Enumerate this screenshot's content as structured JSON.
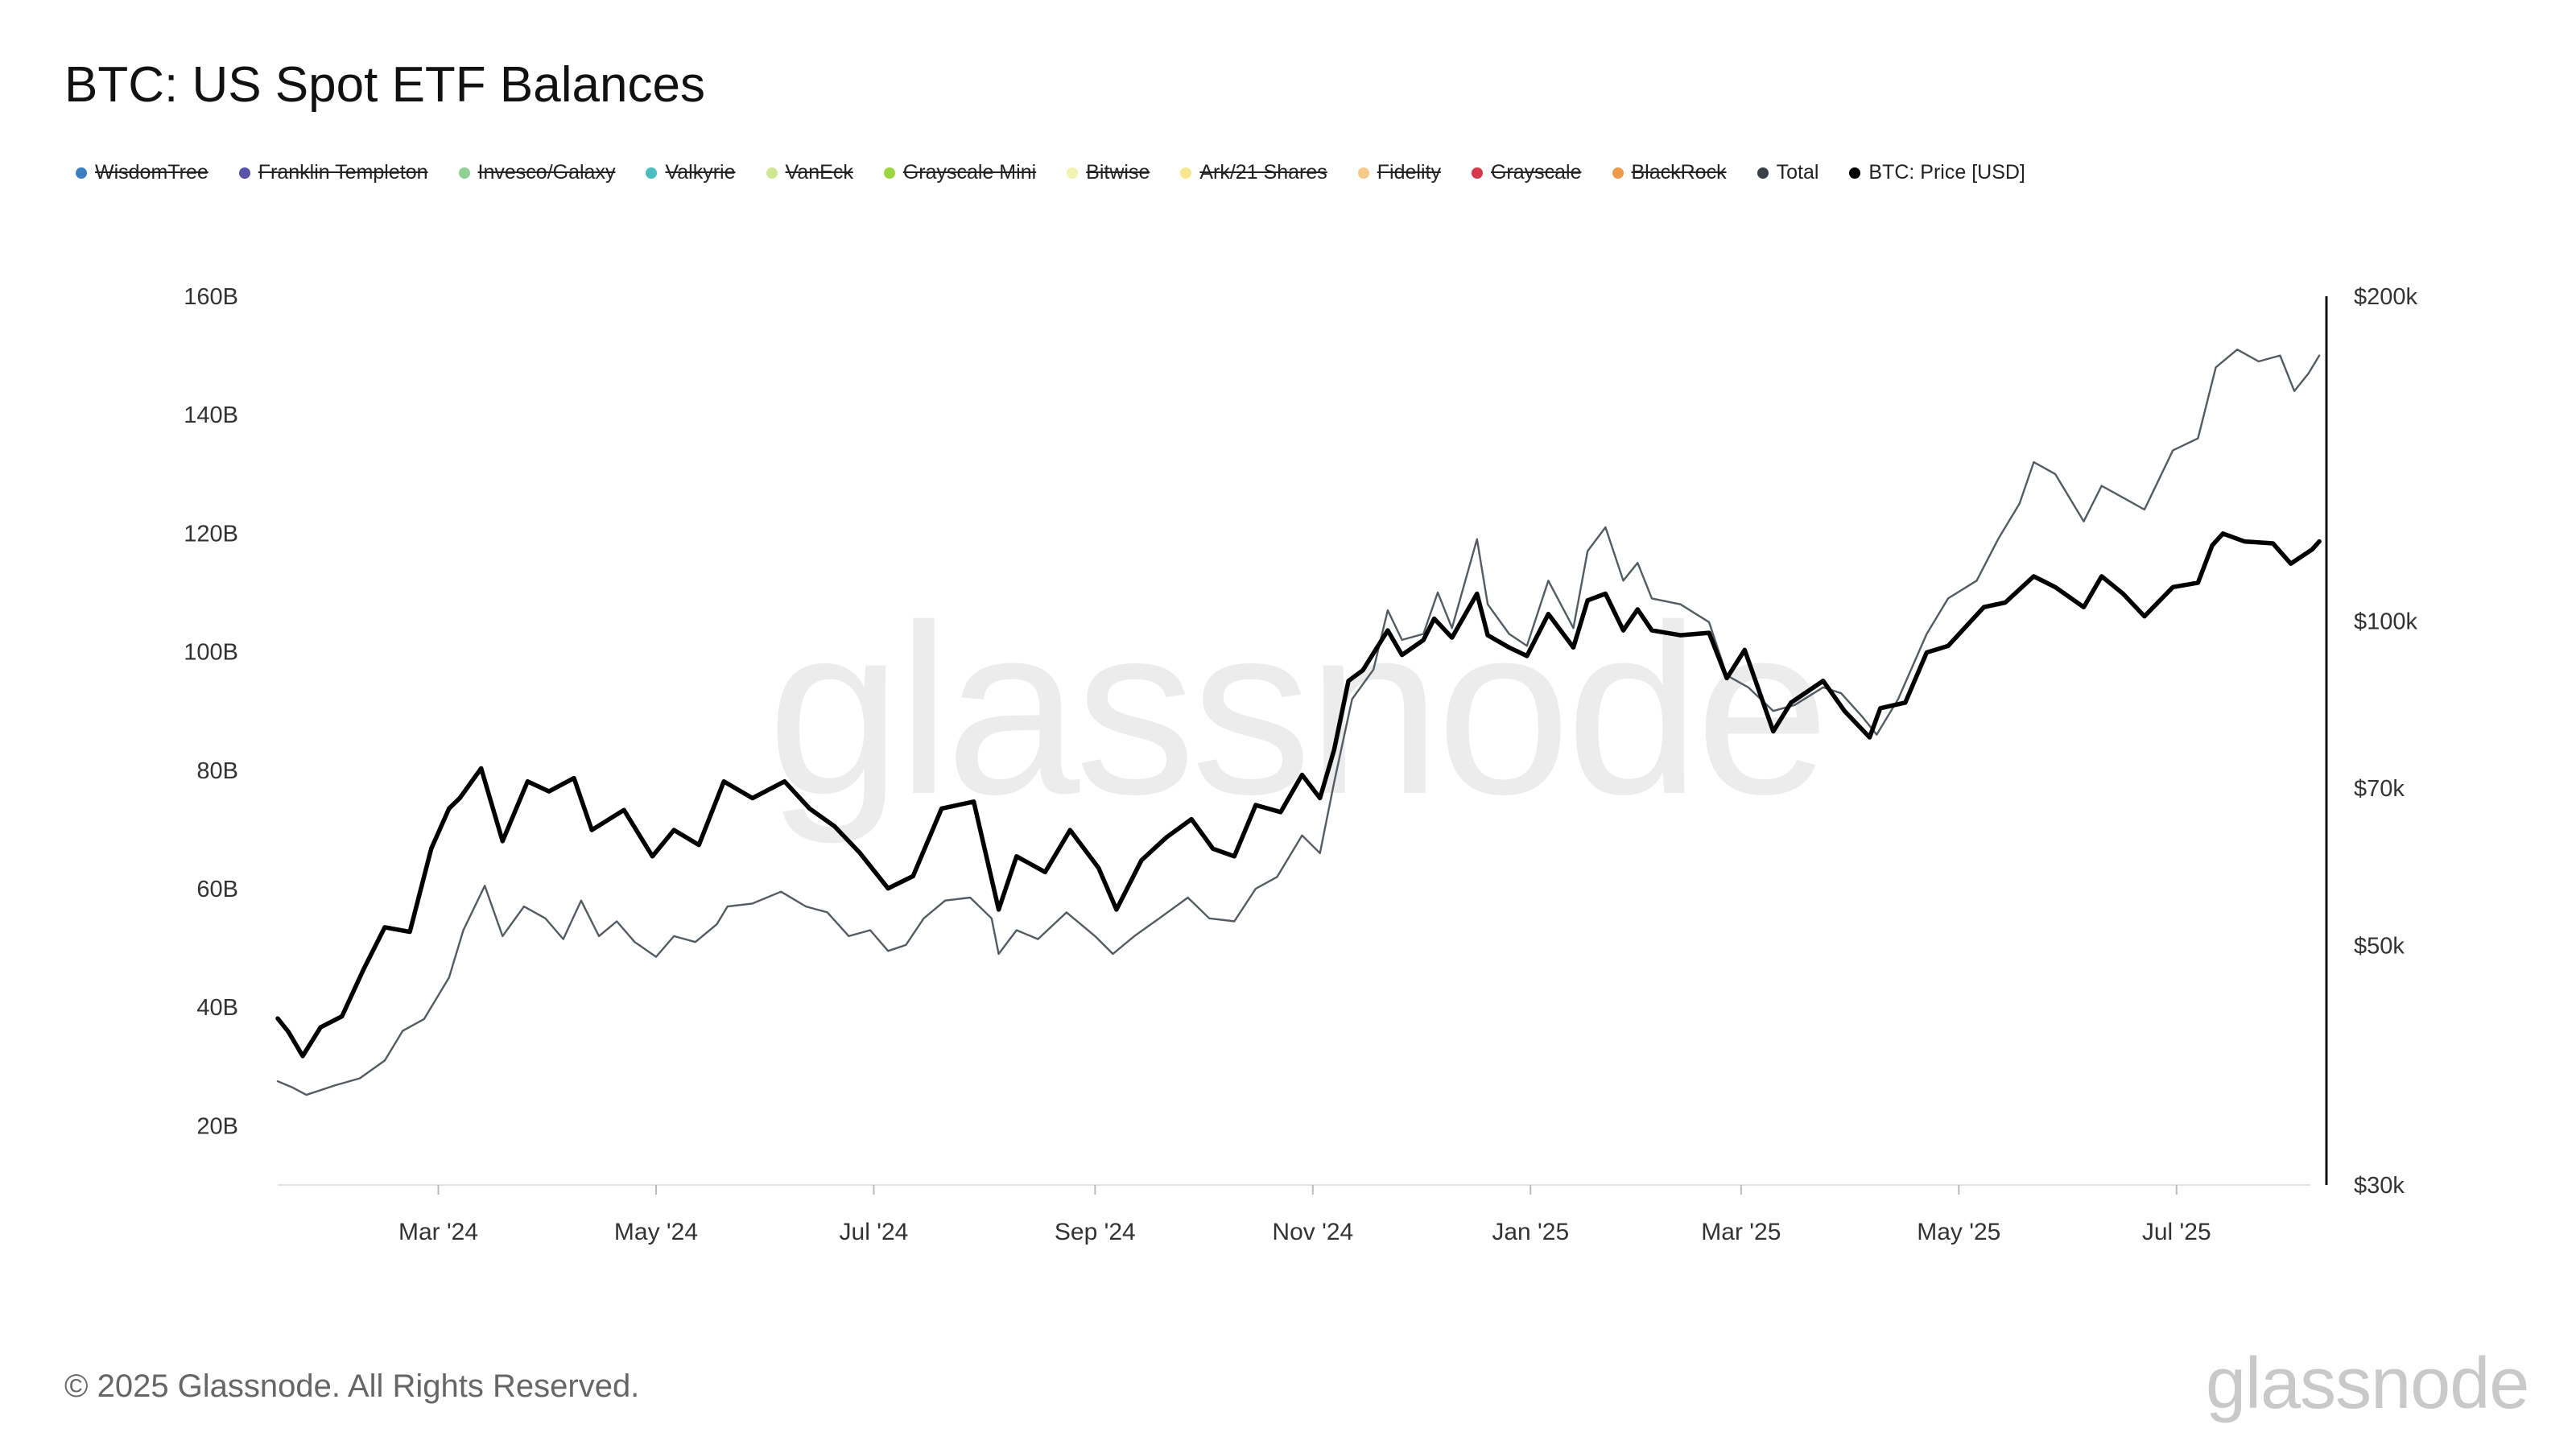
{
  "title": "BTC: US Spot ETF Balances",
  "legend": [
    {
      "label": "WisdomTree",
      "color": "#3a7fc1",
      "active": false
    },
    {
      "label": "Franklin Templeton",
      "color": "#5b54a8",
      "active": false
    },
    {
      "label": "Invesco/Galaxy",
      "color": "#8fd196",
      "active": false
    },
    {
      "label": "Valkyrie",
      "color": "#4bbdbd",
      "active": false
    },
    {
      "label": "VanEck",
      "color": "#cde890",
      "active": false
    },
    {
      "label": "Grayscale Mini",
      "color": "#9bd640",
      "active": false
    },
    {
      "label": "Bitwise",
      "color": "#f2f2b2",
      "active": false
    },
    {
      "label": "Ark/21 Shares",
      "color": "#f8e690",
      "active": false
    },
    {
      "label": "Fidelity",
      "color": "#f7c98a",
      "active": false
    },
    {
      "label": "Grayscale",
      "color": "#d6374a",
      "active": false
    },
    {
      "label": "BlackRock",
      "color": "#ef9a4b",
      "active": false
    },
    {
      "label": "Total",
      "color": "#3b3f4a",
      "active": true
    },
    {
      "label": "BTC: Price [USD]",
      "color": "#000000",
      "active": true
    }
  ],
  "footer": "© 2025 Glassnode. All Rights Reserved.",
  "brand": "glassnode",
  "watermark": "glassnode",
  "chart_data": {
    "type": "line",
    "x_tick_labels": [
      "Mar '24",
      "May '24",
      "Jul '24",
      "Sep '24",
      "Nov '24",
      "Jan '25",
      "Mar '25",
      "May '25",
      "Jul '25"
    ],
    "x_ticks": [
      "2024-03-01",
      "2024-05-01",
      "2024-07-01",
      "2024-09-01",
      "2024-11-01",
      "2025-01-01",
      "2025-03-01",
      "2025-05-01",
      "2025-07-01"
    ],
    "xlim": [
      "2024-01-16",
      "2025-08-12"
    ],
    "y_left": {
      "tick_labels": [
        "20B",
        "40B",
        "60B",
        "80B",
        "100B",
        "120B",
        "140B",
        "160B"
      ],
      "ticks": [
        20,
        40,
        60,
        80,
        100,
        120,
        140,
        160
      ],
      "lim": [
        10,
        160
      ],
      "unit": "billion USD"
    },
    "y_right": {
      "tick_labels": [
        "$30k",
        "$50k",
        "$70k",
        "$100k",
        "$200k"
      ],
      "ticks": [
        30000,
        50000,
        70000,
        100000,
        200000
      ],
      "lim": [
        30000,
        200000
      ],
      "scale": "log"
    },
    "series": [
      {
        "name": "Total",
        "axis": "left",
        "color": "#555a63",
        "points": [
          [
            "2024-01-16",
            27.5
          ],
          [
            "2024-01-20",
            26.5
          ],
          [
            "2024-01-24",
            25.2
          ],
          [
            "2024-02-01",
            26.8
          ],
          [
            "2024-02-08",
            28.0
          ],
          [
            "2024-02-15",
            31.0
          ],
          [
            "2024-02-20",
            36.0
          ],
          [
            "2024-02-26",
            38.0
          ],
          [
            "2024-03-04",
            45.0
          ],
          [
            "2024-03-08",
            53.0
          ],
          [
            "2024-03-14",
            60.5
          ],
          [
            "2024-03-19",
            52.0
          ],
          [
            "2024-03-25",
            57.0
          ],
          [
            "2024-03-31",
            55.0
          ],
          [
            "2024-04-05",
            51.5
          ],
          [
            "2024-04-10",
            58.0
          ],
          [
            "2024-04-15",
            52.0
          ],
          [
            "2024-04-20",
            54.5
          ],
          [
            "2024-04-25",
            51.0
          ],
          [
            "2024-05-01",
            48.5
          ],
          [
            "2024-05-06",
            52.0
          ],
          [
            "2024-05-12",
            51.0
          ],
          [
            "2024-05-18",
            54.0
          ],
          [
            "2024-05-21",
            57.0
          ],
          [
            "2024-05-28",
            57.5
          ],
          [
            "2024-06-05",
            59.5
          ],
          [
            "2024-06-12",
            57.0
          ],
          [
            "2024-06-18",
            56.0
          ],
          [
            "2024-06-24",
            52.0
          ],
          [
            "2024-06-30",
            53.0
          ],
          [
            "2024-07-05",
            49.5
          ],
          [
            "2024-07-10",
            50.5
          ],
          [
            "2024-07-15",
            55.0
          ],
          [
            "2024-07-21",
            58.0
          ],
          [
            "2024-07-28",
            58.5
          ],
          [
            "2024-08-03",
            55.0
          ],
          [
            "2024-08-05",
            49.0
          ],
          [
            "2024-08-10",
            53.0
          ],
          [
            "2024-08-16",
            51.5
          ],
          [
            "2024-08-24",
            56.0
          ],
          [
            "2024-09-01",
            52.0
          ],
          [
            "2024-09-06",
            49.0
          ],
          [
            "2024-09-12",
            52.0
          ],
          [
            "2024-09-19",
            55.0
          ],
          [
            "2024-09-27",
            58.5
          ],
          [
            "2024-10-03",
            55.0
          ],
          [
            "2024-10-10",
            54.5
          ],
          [
            "2024-10-16",
            60.0
          ],
          [
            "2024-10-22",
            62.0
          ],
          [
            "2024-10-29",
            69.0
          ],
          [
            "2024-11-03",
            66.0
          ],
          [
            "2024-11-07",
            78.0
          ],
          [
            "2024-11-12",
            92.0
          ],
          [
            "2024-11-18",
            97.0
          ],
          [
            "2024-11-22",
            107.0
          ],
          [
            "2024-11-26",
            102.0
          ],
          [
            "2024-12-02",
            103.0
          ],
          [
            "2024-12-06",
            110.0
          ],
          [
            "2024-12-10",
            104.0
          ],
          [
            "2024-12-17",
            119.0
          ],
          [
            "2024-12-20",
            108.0
          ],
          [
            "2024-12-26",
            103.0
          ],
          [
            "2024-12-31",
            101.0
          ],
          [
            "2025-01-06",
            112.0
          ],
          [
            "2025-01-13",
            104.0
          ],
          [
            "2025-01-17",
            117.0
          ],
          [
            "2025-01-22",
            121.0
          ],
          [
            "2025-01-27",
            112.0
          ],
          [
            "2025-01-31",
            115.0
          ],
          [
            "2025-02-04",
            109.0
          ],
          [
            "2025-02-12",
            108.0
          ],
          [
            "2025-02-20",
            105.0
          ],
          [
            "2025-02-25",
            96.0
          ],
          [
            "2025-03-03",
            94.0
          ],
          [
            "2025-03-10",
            90.0
          ],
          [
            "2025-03-16",
            91.0
          ],
          [
            "2025-03-24",
            94.0
          ],
          [
            "2025-03-29",
            93.0
          ],
          [
            "2025-04-04",
            89.0
          ],
          [
            "2025-04-08",
            86.0
          ],
          [
            "2025-04-14",
            92.0
          ],
          [
            "2025-04-22",
            103.0
          ],
          [
            "2025-04-28",
            109.0
          ],
          [
            "2025-05-06",
            112.0
          ],
          [
            "2025-05-12",
            119.0
          ],
          [
            "2025-05-18",
            125.0
          ],
          [
            "2025-05-22",
            132.0
          ],
          [
            "2025-05-28",
            130.0
          ],
          [
            "2025-06-05",
            122.0
          ],
          [
            "2025-06-10",
            128.0
          ],
          [
            "2025-06-16",
            126.0
          ],
          [
            "2025-06-22",
            124.0
          ],
          [
            "2025-06-30",
            134.0
          ],
          [
            "2025-07-07",
            136.0
          ],
          [
            "2025-07-12",
            148.0
          ],
          [
            "2025-07-18",
            151.0
          ],
          [
            "2025-07-24",
            149.0
          ],
          [
            "2025-07-30",
            150.0
          ],
          [
            "2025-08-03",
            144.0
          ],
          [
            "2025-08-07",
            147.0
          ],
          [
            "2025-08-10",
            150.0
          ]
        ]
      },
      {
        "name": "BTC: Price [USD]",
        "axis": "right",
        "color": "#000000",
        "points": [
          [
            "2024-01-16",
            42800
          ],
          [
            "2024-01-19",
            41600
          ],
          [
            "2024-01-23",
            39500
          ],
          [
            "2024-01-28",
            42000
          ],
          [
            "2024-02-03",
            43000
          ],
          [
            "2024-02-09",
            47500
          ],
          [
            "2024-02-15",
            52000
          ],
          [
            "2024-02-22",
            51500
          ],
          [
            "2024-02-28",
            61500
          ],
          [
            "2024-03-04",
            67000
          ],
          [
            "2024-03-07",
            68500
          ],
          [
            "2024-03-13",
            73000
          ],
          [
            "2024-03-19",
            62500
          ],
          [
            "2024-03-26",
            71000
          ],
          [
            "2024-04-01",
            69500
          ],
          [
            "2024-04-08",
            71500
          ],
          [
            "2024-04-13",
            64000
          ],
          [
            "2024-04-22",
            66800
          ],
          [
            "2024-04-30",
            60500
          ],
          [
            "2024-05-06",
            64000
          ],
          [
            "2024-05-13",
            62000
          ],
          [
            "2024-05-20",
            71000
          ],
          [
            "2024-05-28",
            68500
          ],
          [
            "2024-06-06",
            71000
          ],
          [
            "2024-06-13",
            67000
          ],
          [
            "2024-06-20",
            64500
          ],
          [
            "2024-06-27",
            61000
          ],
          [
            "2024-07-05",
            56500
          ],
          [
            "2024-07-12",
            58000
          ],
          [
            "2024-07-20",
            67000
          ],
          [
            "2024-07-29",
            68000
          ],
          [
            "2024-08-05",
            54000
          ],
          [
            "2024-08-10",
            60500
          ],
          [
            "2024-08-18",
            58500
          ],
          [
            "2024-08-25",
            64000
          ],
          [
            "2024-09-02",
            59000
          ],
          [
            "2024-09-07",
            54000
          ],
          [
            "2024-09-14",
            60000
          ],
          [
            "2024-09-21",
            63000
          ],
          [
            "2024-09-28",
            65500
          ],
          [
            "2024-10-04",
            61500
          ],
          [
            "2024-10-10",
            60500
          ],
          [
            "2024-10-16",
            67500
          ],
          [
            "2024-10-23",
            66500
          ],
          [
            "2024-10-29",
            72000
          ],
          [
            "2024-11-03",
            68500
          ],
          [
            "2024-11-07",
            76000
          ],
          [
            "2024-11-11",
            88000
          ],
          [
            "2024-11-15",
            90000
          ],
          [
            "2024-11-22",
            98000
          ],
          [
            "2024-11-26",
            93000
          ],
          [
            "2024-12-02",
            96000
          ],
          [
            "2024-12-05",
            100500
          ],
          [
            "2024-12-10",
            96500
          ],
          [
            "2024-12-17",
            106000
          ],
          [
            "2024-12-20",
            97000
          ],
          [
            "2024-12-26",
            94500
          ],
          [
            "2024-12-31",
            92800
          ],
          [
            "2025-01-06",
            101500
          ],
          [
            "2025-01-13",
            94500
          ],
          [
            "2025-01-17",
            104500
          ],
          [
            "2025-01-22",
            106000
          ],
          [
            "2025-01-27",
            98000
          ],
          [
            "2025-01-31",
            102500
          ],
          [
            "2025-02-04",
            98000
          ],
          [
            "2025-02-12",
            97000
          ],
          [
            "2025-02-20",
            97500
          ],
          [
            "2025-02-25",
            88500
          ],
          [
            "2025-03-02",
            94000
          ],
          [
            "2025-03-10",
            79000
          ],
          [
            "2025-03-15",
            84000
          ],
          [
            "2025-03-24",
            88000
          ],
          [
            "2025-03-30",
            82500
          ],
          [
            "2025-04-06",
            78000
          ],
          [
            "2025-04-09",
            83000
          ],
          [
            "2025-04-16",
            84000
          ],
          [
            "2025-04-22",
            93500
          ],
          [
            "2025-04-28",
            94800
          ],
          [
            "2025-05-08",
            103000
          ],
          [
            "2025-05-14",
            104000
          ],
          [
            "2025-05-22",
            110000
          ],
          [
            "2025-05-28",
            107500
          ],
          [
            "2025-06-05",
            103000
          ],
          [
            "2025-06-10",
            110000
          ],
          [
            "2025-06-16",
            106000
          ],
          [
            "2025-06-22",
            101000
          ],
          [
            "2025-06-30",
            107500
          ],
          [
            "2025-07-07",
            108500
          ],
          [
            "2025-07-11",
            117500
          ],
          [
            "2025-07-14",
            120500
          ],
          [
            "2025-07-20",
            118500
          ],
          [
            "2025-07-28",
            118000
          ],
          [
            "2025-08-02",
            113000
          ],
          [
            "2025-08-08",
            116500
          ],
          [
            "2025-08-10",
            118500
          ]
        ]
      }
    ],
    "grid": false,
    "legend_position": "top-left"
  }
}
